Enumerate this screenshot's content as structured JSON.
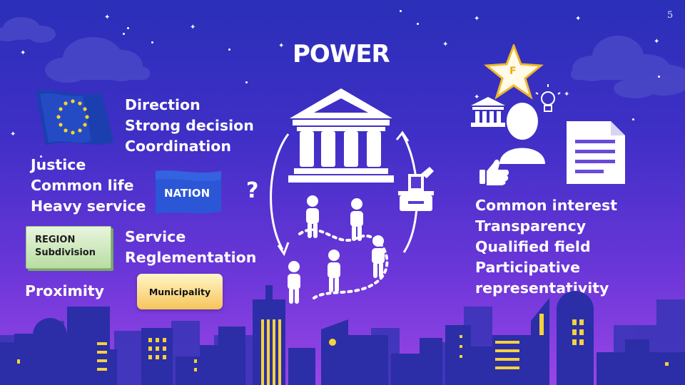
{
  "slide": {
    "page_number": "5",
    "title": "POWER"
  },
  "left": {
    "eu_lines": [
      "Direction",
      "Strong decision",
      "Coordination"
    ],
    "nation_lines": [
      "Justice",
      "Common life",
      "Heavy service"
    ],
    "nation_flag": "NATION",
    "region_box": [
      "REGION",
      "Subdivision"
    ],
    "region_lines": [
      "Service",
      "Reglementation"
    ],
    "proximity": "Proximity",
    "municipality": "Municipality"
  },
  "center": {
    "question_mark": "?"
  },
  "right": {
    "lines": [
      "Common interest",
      "Transparency",
      "Qualified field",
      "Participative",
      "representativity"
    ],
    "star_letter": "F"
  },
  "colors": {
    "building": "#2b2ea6",
    "building_dark": "#252396",
    "window": "#f4d23c",
    "eu_blue": "#1c3fb0",
    "eu_star": "#f6d32a",
    "nation_blue": "#2b56d6"
  }
}
